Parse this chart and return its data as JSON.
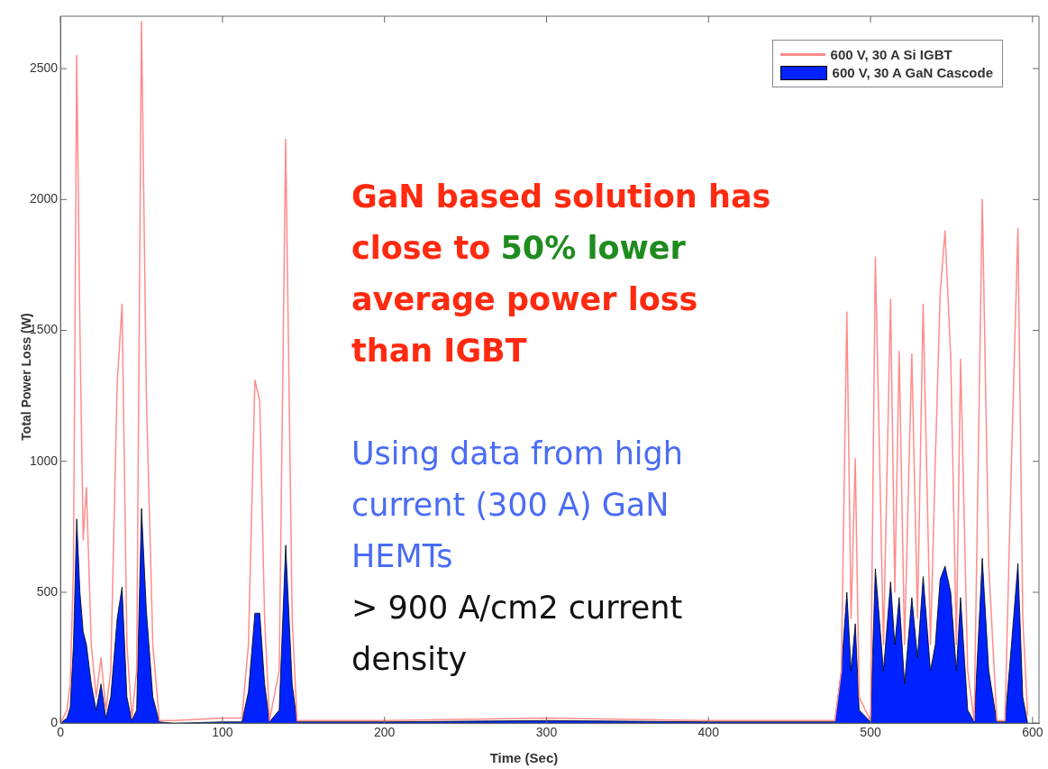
{
  "chart_data": {
    "type": "line",
    "xlabel": "Time (Sec)",
    "ylabel": "Total Power Loss (W)",
    "x": [
      0,
      4,
      6,
      8,
      10,
      12,
      14,
      16,
      19,
      22,
      25,
      28,
      31,
      35,
      38,
      41,
      44,
      47,
      50,
      53,
      57,
      61,
      70,
      100,
      112,
      116,
      120,
      123,
      126,
      129,
      135,
      139,
      143,
      146,
      200,
      300,
      400,
      478,
      482,
      485.4,
      488,
      490.6,
      493,
      500,
      503,
      508,
      512.4,
      515,
      517.7,
      521,
      525.5,
      529,
      532.5,
      537,
      540,
      543,
      546,
      549.5,
      553,
      555.6,
      560,
      564,
      569,
      573,
      578,
      583,
      587,
      591,
      594,
      597
    ],
    "series": [
      {
        "name": "600 V, 30 A Si IGBT",
        "color": "#ff8c8c",
        "values": [
          0,
          50,
          150,
          600,
          2550,
          1500,
          700,
          900,
          300,
          100,
          250,
          50,
          200,
          1300,
          1600,
          300,
          20,
          200,
          2680,
          1250,
          300,
          10,
          10,
          20,
          20,
          300,
          1310,
          1230,
          400,
          10,
          200,
          2230,
          400,
          10,
          10,
          20,
          10,
          10,
          200,
          1570,
          400,
          1010,
          100,
          10,
          1780,
          300,
          1620,
          500,
          1420,
          300,
          1410,
          400,
          1600,
          300,
          1000,
          1640,
          1880,
          1400,
          300,
          1390,
          200,
          10,
          2000,
          600,
          10,
          10,
          1000,
          1890,
          400,
          30
        ]
      },
      {
        "name": "600 V, 30 A GaN Cascode",
        "type": "area",
        "color": "#0022ff",
        "values": [
          0,
          20,
          60,
          300,
          780,
          500,
          350,
          300,
          150,
          50,
          150,
          20,
          100,
          400,
          520,
          100,
          10,
          50,
          820,
          430,
          100,
          5,
          0,
          5,
          5,
          120,
          420,
          420,
          150,
          5,
          50,
          680,
          150,
          5,
          5,
          10,
          5,
          5,
          200,
          500,
          200,
          380,
          50,
          5,
          590,
          200,
          540,
          300,
          480,
          150,
          480,
          250,
          560,
          200,
          300,
          550,
          600,
          500,
          200,
          480,
          50,
          5,
          630,
          200,
          5,
          5,
          300,
          610,
          100,
          0
        ]
      }
    ],
    "xlim": [
      0,
      604
    ],
    "xticks": [
      0,
      100,
      200,
      300,
      400,
      500,
      600
    ],
    "ylim": [
      0,
      2700
    ],
    "yticks": [
      0,
      500,
      1000,
      1500,
      2000,
      2500
    ],
    "grid": false,
    "legend": "top right",
    "marker": "none",
    "annotations": [
      "GaN based solution has close to",
      "50%  lower",
      "average power loss than IGBT",
      "Using data from high current (300 A) GaN HEMTs",
      "> 900 A/cm2 current density"
    ]
  }
}
